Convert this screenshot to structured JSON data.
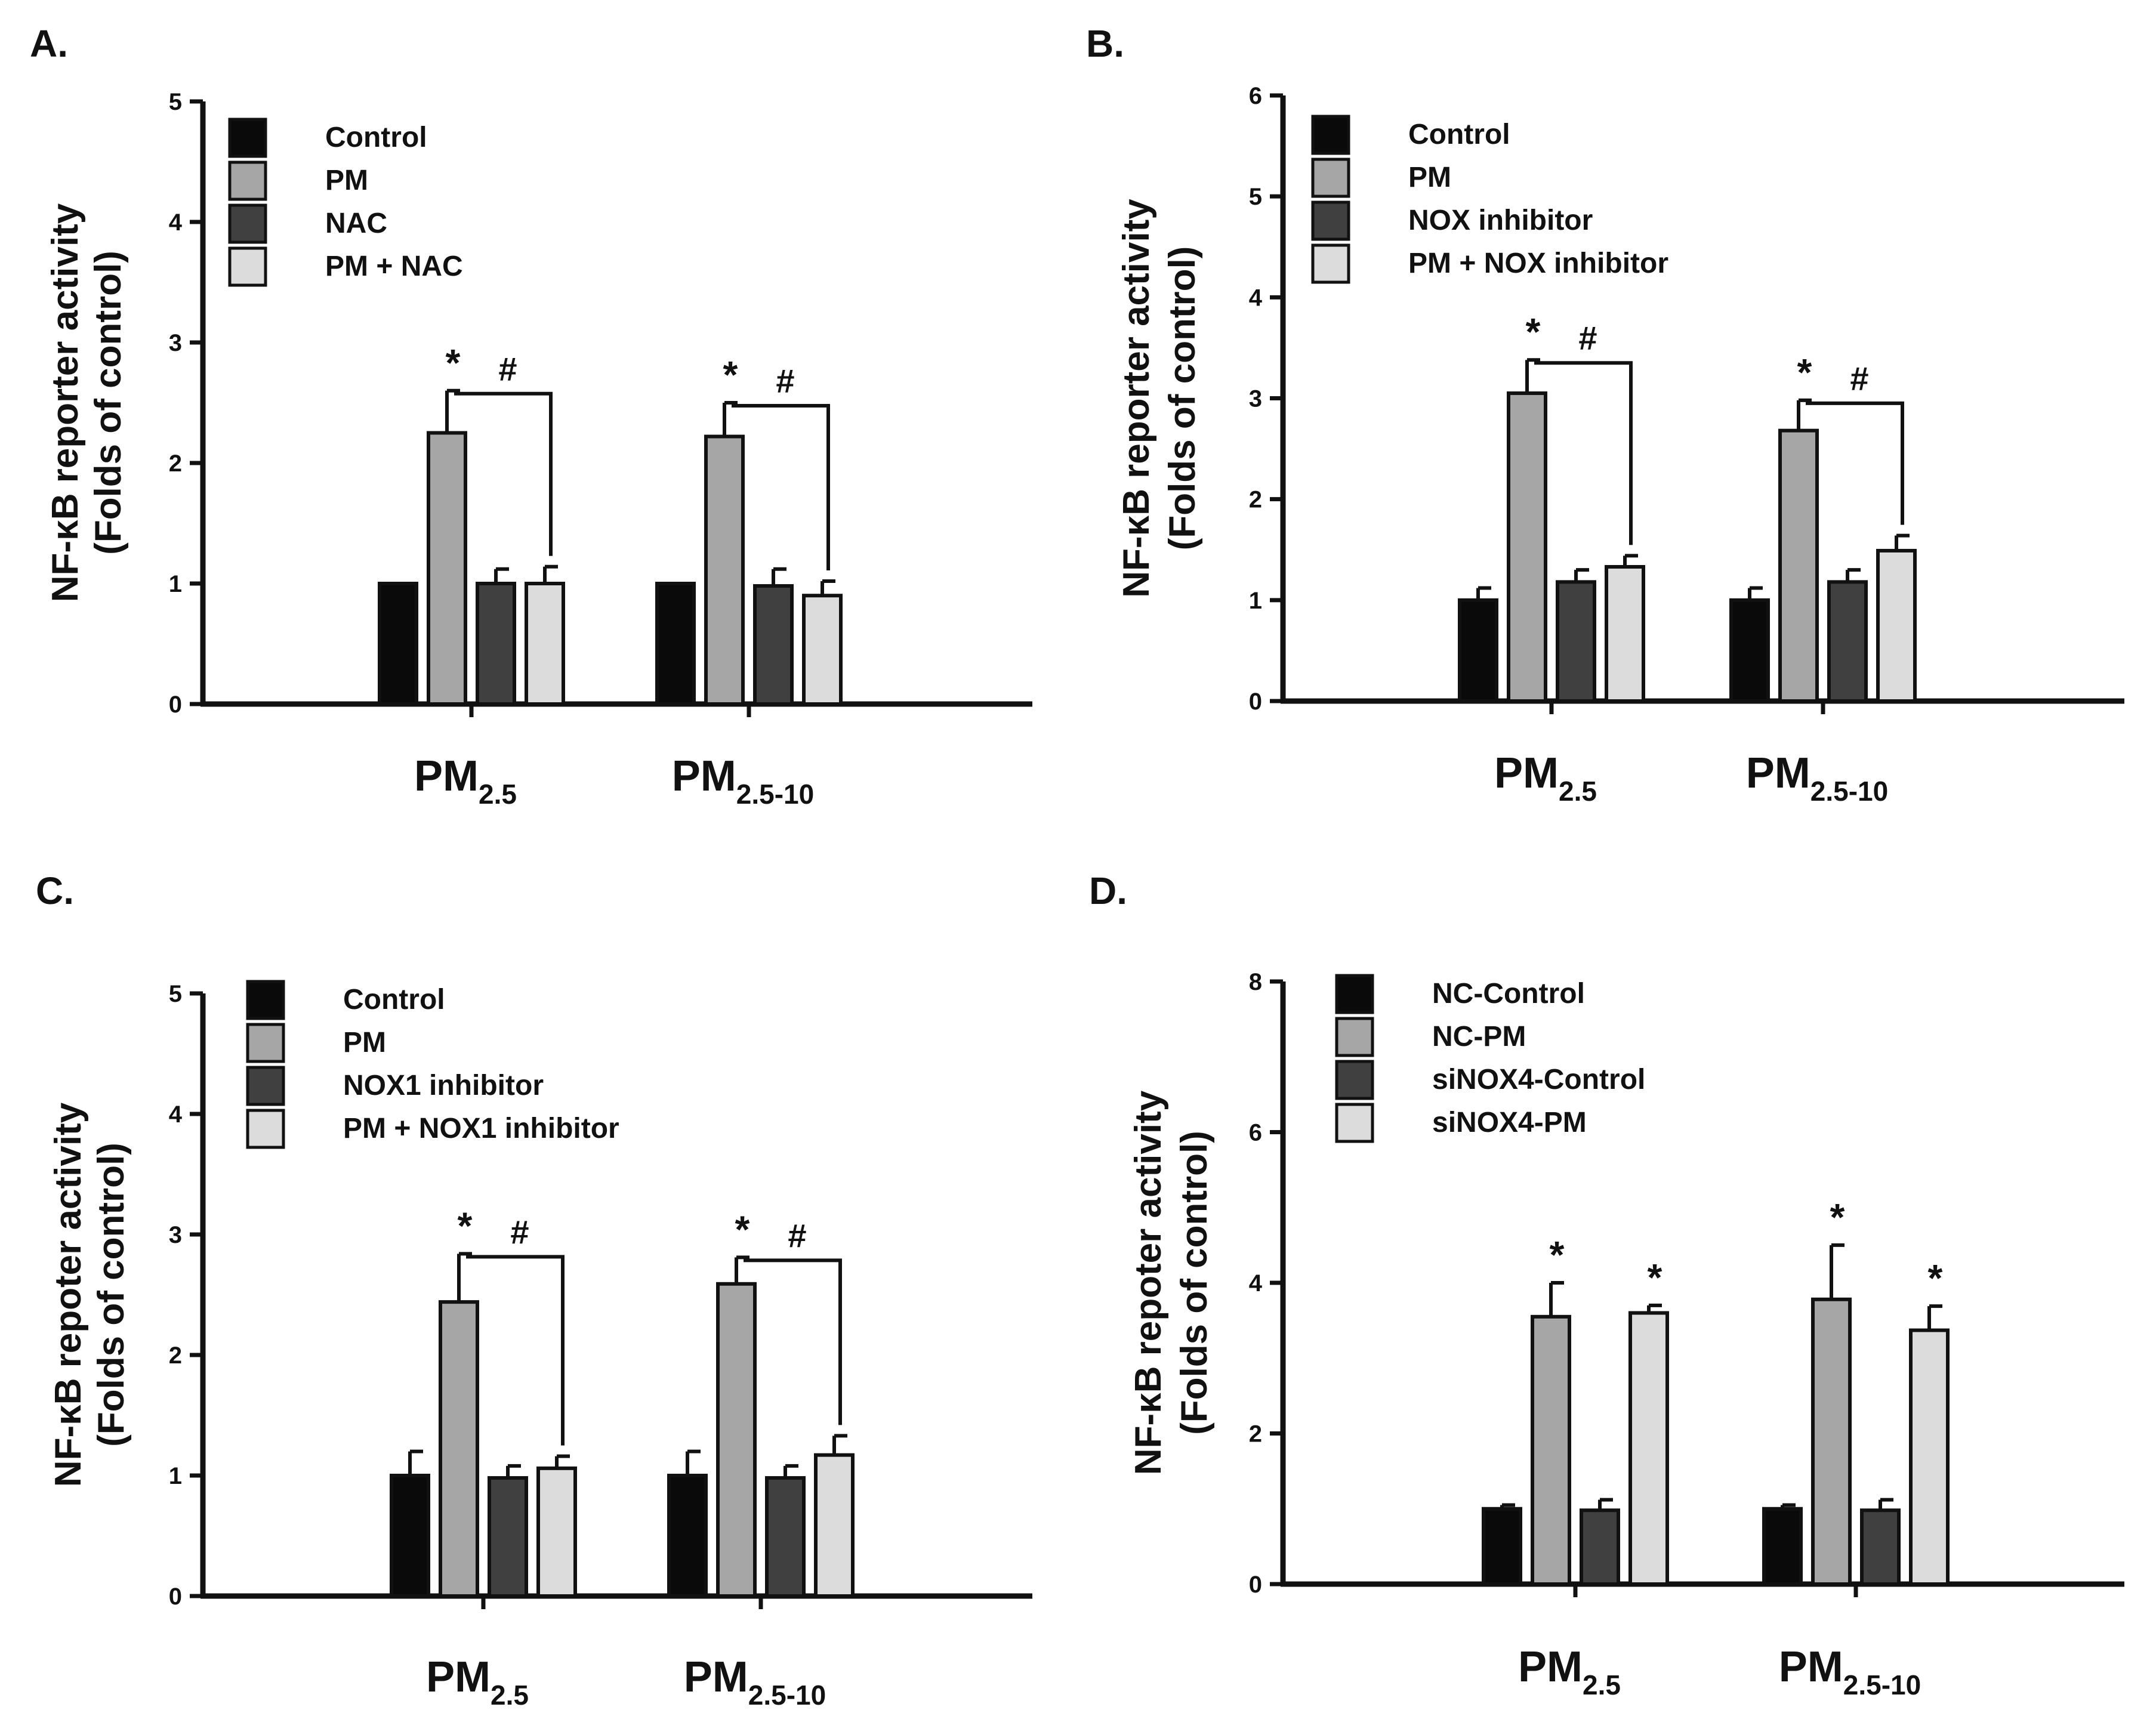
{
  "chart_data": [
    {
      "type": "bar",
      "panel": "A.",
      "ylabel": [
        "NF-κB reporter activity",
        "(Folds of control)"
      ],
      "ylim": [
        0,
        5
      ],
      "yticks": [
        "0",
        "1",
        "2",
        "3",
        "4",
        "5"
      ],
      "categories": [
        {
          "main": "PM",
          "sub": "2.5"
        },
        {
          "main": "PM",
          "sub": "2.5-10"
        }
      ],
      "colors": [
        "#0a0a0a",
        "#a6a6a6",
        "#404040",
        "#dcdcdc"
      ],
      "series": [
        {
          "name": "Control",
          "values": [
            1.0,
            1.0
          ],
          "errors": [
            0.0,
            0.0
          ]
        },
        {
          "name": "PM",
          "values": [
            2.25,
            2.22
          ],
          "errors": [
            0.35,
            0.28
          ]
        },
        {
          "name": "NAC",
          "values": [
            1.0,
            0.98
          ],
          "errors": [
            0.12,
            0.14
          ]
        },
        {
          "name": "PM + NAC",
          "values": [
            1.0,
            0.9
          ],
          "errors": [
            0.14,
            0.12
          ]
        }
      ],
      "annotations": {
        "star": "*",
        "hash": "#",
        "stars": [
          [
            1
          ],
          [
            1
          ]
        ],
        "brackets": [
          [
            1,
            3
          ],
          [
            1,
            3
          ]
        ]
      }
    },
    {
      "type": "bar",
      "panel": "B.",
      "ylabel": [
        "NF-κB reporter activity",
        "(Folds of control)"
      ],
      "ylim": [
        0,
        6
      ],
      "yticks": [
        "0",
        "1",
        "2",
        "3",
        "4",
        "5",
        "6"
      ],
      "categories": [
        {
          "main": "PM",
          "sub": "2.5"
        },
        {
          "main": "PM",
          "sub": "2.5-10"
        }
      ],
      "colors": [
        "#0a0a0a",
        "#a6a6a6",
        "#404040",
        "#dcdcdc"
      ],
      "series": [
        {
          "name": "Control",
          "values": [
            1.0,
            1.0
          ],
          "errors": [
            0.12,
            0.12
          ]
        },
        {
          "name": "PM",
          "values": [
            3.05,
            2.68
          ],
          "errors": [
            0.33,
            0.3
          ]
        },
        {
          "name": "NOX inhibitor",
          "values": [
            1.18,
            1.18
          ],
          "errors": [
            0.12,
            0.12
          ]
        },
        {
          "name": "PM + NOX inhibitor",
          "values": [
            1.33,
            1.49
          ],
          "errors": [
            0.11,
            0.15
          ]
        }
      ],
      "annotations": {
        "star": "*",
        "hash": "#",
        "stars": [
          [
            1
          ],
          [
            1
          ]
        ],
        "brackets": [
          [
            1,
            3
          ],
          [
            1,
            3
          ]
        ]
      }
    },
    {
      "type": "bar",
      "panel": "C.",
      "ylabel": [
        "NF-κB repoter activity",
        "(Folds of control)"
      ],
      "ylim": [
        0,
        5
      ],
      "yticks": [
        "0",
        "1",
        "2",
        "3",
        "4",
        "5"
      ],
      "categories": [
        {
          "main": "PM",
          "sub": "2.5"
        },
        {
          "main": "PM",
          "sub": "2.5-10"
        }
      ],
      "colors": [
        "#0a0a0a",
        "#a6a6a6",
        "#404040",
        "#dcdcdc"
      ],
      "series": [
        {
          "name": "Control",
          "values": [
            1.0,
            1.0
          ],
          "errors": [
            0.2,
            0.2
          ]
        },
        {
          "name": "PM",
          "values": [
            2.44,
            2.59
          ],
          "errors": [
            0.4,
            0.22
          ]
        },
        {
          "name": "NOX1 inhibitor",
          "values": [
            0.98,
            0.98
          ],
          "errors": [
            0.1,
            0.1
          ]
        },
        {
          "name": "PM + NOX1 inhibitor",
          "values": [
            1.06,
            1.17
          ],
          "errors": [
            0.1,
            0.16
          ]
        }
      ],
      "annotations": {
        "star": "*",
        "hash": "#",
        "stars": [
          [
            1
          ],
          [
            1
          ]
        ],
        "brackets": [
          [
            1,
            3
          ],
          [
            1,
            3
          ]
        ]
      }
    },
    {
      "type": "bar",
      "panel": "D.",
      "ylabel": [
        "NF-κB repoter activity",
        "(Folds of control)"
      ],
      "ylim": [
        0,
        8
      ],
      "yticks": [
        "0",
        "2",
        "4",
        "6",
        "8"
      ],
      "categories": [
        {
          "main": "PM",
          "sub": "2.5"
        },
        {
          "main": "PM",
          "sub": "2.5-10"
        }
      ],
      "colors": [
        "#0a0a0a",
        "#a6a6a6",
        "#404040",
        "#dcdcdc"
      ],
      "series": [
        {
          "name": "NC-Control",
          "values": [
            1.0,
            1.0
          ],
          "errors": [
            0.05,
            0.05
          ]
        },
        {
          "name": "NC-PM",
          "values": [
            3.55,
            3.78
          ],
          "errors": [
            0.45,
            0.72
          ]
        },
        {
          "name": "siNOX4-Control",
          "values": [
            0.98,
            0.98
          ],
          "errors": [
            0.14,
            0.14
          ]
        },
        {
          "name": "siNOX4-PM",
          "values": [
            3.6,
            3.37
          ],
          "errors": [
            0.1,
            0.32
          ]
        }
      ],
      "annotations": {
        "star": "*",
        "hash": "#",
        "stars": [
          [
            1,
            3
          ],
          [
            1,
            3
          ]
        ],
        "brackets": [
          [],
          []
        ]
      }
    }
  ]
}
